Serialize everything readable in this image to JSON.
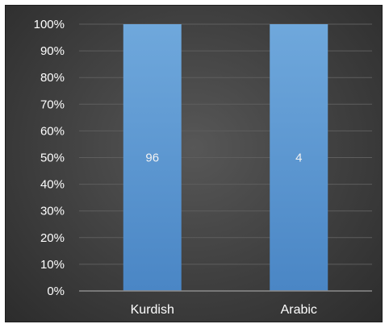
{
  "chart_data": {
    "type": "bar",
    "stacked_percent": true,
    "categories": [
      "Kurdish",
      "Arabic"
    ],
    "values": [
      96,
      4
    ],
    "data_labels": [
      "96",
      "4"
    ],
    "y_ticks": [
      "0%",
      "10%",
      "20%",
      "30%",
      "40%",
      "50%",
      "60%",
      "70%",
      "80%",
      "90%",
      "100%"
    ],
    "ylim": [
      0,
      100
    ],
    "grid": true,
    "colors": {
      "bar": "#5b9bd5",
      "bar_light": "#6fa8dc",
      "grid": "#5e5e5e",
      "axis": "#8c8c8c",
      "text": "#ffffff"
    }
  }
}
